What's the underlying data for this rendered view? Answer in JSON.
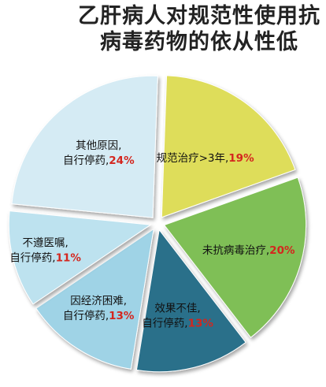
{
  "chart_data": {
    "type": "pie",
    "title_lines": [
      "乙肝病人对规范性使用抗",
      "病毒药物的依从性低"
    ],
    "slices": [
      {
        "label_lines": [
          "规范治疗>3年,"
        ],
        "pct_label": "19%",
        "value": 19,
        "color": "#dedd5a"
      },
      {
        "label_lines": [
          "未抗病毒治疗,"
        ],
        "pct_label": "20%",
        "value": 20,
        "color": "#7fbf56"
      },
      {
        "label_lines": [
          "效果不佳,",
          "自行停药,"
        ],
        "pct_label": "13%",
        "value": 13,
        "color": "#2b6f8a"
      },
      {
        "label_lines": [
          "因经济困难,",
          "自行停药,"
        ],
        "pct_label": "13%",
        "value": 13,
        "color": "#9fd3e6"
      },
      {
        "label_lines": [
          "不遵医嘱,",
          "自行停药,"
        ],
        "pct_label": "11%",
        "value": 11,
        "color": "#bde2ef"
      },
      {
        "label_lines": [
          "其他原因,",
          "自行停药,"
        ],
        "pct_label": "24%",
        "value": 24,
        "color": "#d5ebf4"
      }
    ]
  }
}
